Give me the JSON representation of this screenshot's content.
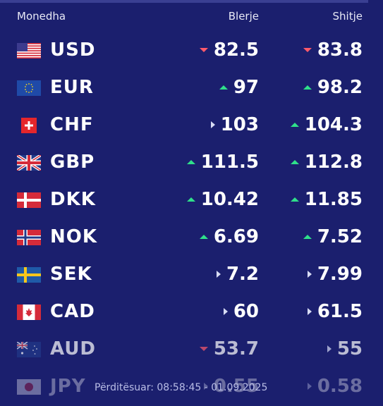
{
  "header": {
    "currency": "Monedha",
    "buy": "Blerje",
    "sell": "Shitje"
  },
  "rows": [
    {
      "code": "USD",
      "flag": "us-flag-icon",
      "buy": "82.5",
      "buy_trend": "down",
      "sell": "83.8",
      "sell_trend": "down"
    },
    {
      "code": "EUR",
      "flag": "eu-flag-icon",
      "buy": "97",
      "buy_trend": "up",
      "sell": "98.2",
      "sell_trend": "up"
    },
    {
      "code": "CHF",
      "flag": "ch-flag-icon",
      "buy": "103",
      "buy_trend": "flat",
      "sell": "104.3",
      "sell_trend": "up"
    },
    {
      "code": "GBP",
      "flag": "gb-flag-icon",
      "buy": "111.5",
      "buy_trend": "up",
      "sell": "112.8",
      "sell_trend": "up"
    },
    {
      "code": "DKK",
      "flag": "dk-flag-icon",
      "buy": "10.42",
      "buy_trend": "up",
      "sell": "11.85",
      "sell_trend": "up"
    },
    {
      "code": "NOK",
      "flag": "no-flag-icon",
      "buy": "6.69",
      "buy_trend": "up",
      "sell": "7.52",
      "sell_trend": "up"
    },
    {
      "code": "SEK",
      "flag": "se-flag-icon",
      "buy": "7.2",
      "buy_trend": "flat",
      "sell": "7.99",
      "sell_trend": "flat"
    },
    {
      "code": "CAD",
      "flag": "ca-flag-icon",
      "buy": "60",
      "buy_trend": "flat",
      "sell": "61.5",
      "sell_trend": "flat"
    },
    {
      "code": "AUD",
      "flag": "au-flag-icon",
      "buy": "53.7",
      "buy_trend": "down",
      "sell": "55",
      "sell_trend": "flat"
    },
    {
      "code": "JPY",
      "flag": "jp-flag-icon",
      "buy": "0.55",
      "buy_trend": "flat",
      "sell": "0.58",
      "sell_trend": "flat"
    }
  ],
  "footer": {
    "updated_label": "Përditësuar:",
    "updated_time": "08:58:45 - 01.09.2025"
  },
  "colors": {
    "background": "#1b1f6e",
    "up": "#2fe08a",
    "down": "#ff5a6a",
    "flat": "#d8dcf4"
  }
}
